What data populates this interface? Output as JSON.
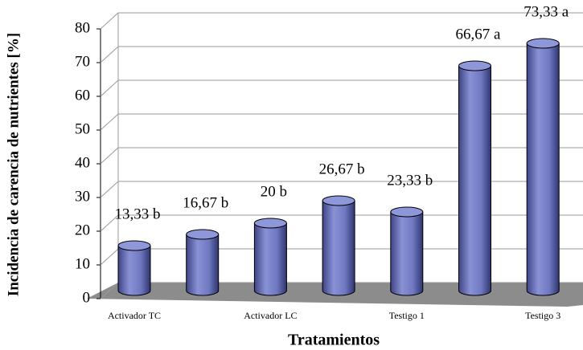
{
  "chart_data": {
    "type": "bar",
    "x_label": "Tratamientos",
    "y_label": "Incidencia de carencia de nutrientes [%]",
    "categories": [
      "Activador TC",
      null,
      "Activador LC",
      null,
      "Testigo 1",
      null,
      "Testigo 3"
    ],
    "values": [
      13.33,
      16.67,
      20,
      26.67,
      23.33,
      66.67,
      73.33
    ],
    "value_labels": [
      "13,33 b",
      "16,67 b",
      "20 b",
      "26,67 b",
      "23,33 b",
      "66,67 a",
      "73,33 a"
    ],
    "color": "#6f78c0",
    "ylim": [
      0,
      80
    ],
    "yticks": [
      0,
      10,
      20,
      30,
      40,
      50,
      60,
      70,
      80
    ],
    "grid": true
  }
}
